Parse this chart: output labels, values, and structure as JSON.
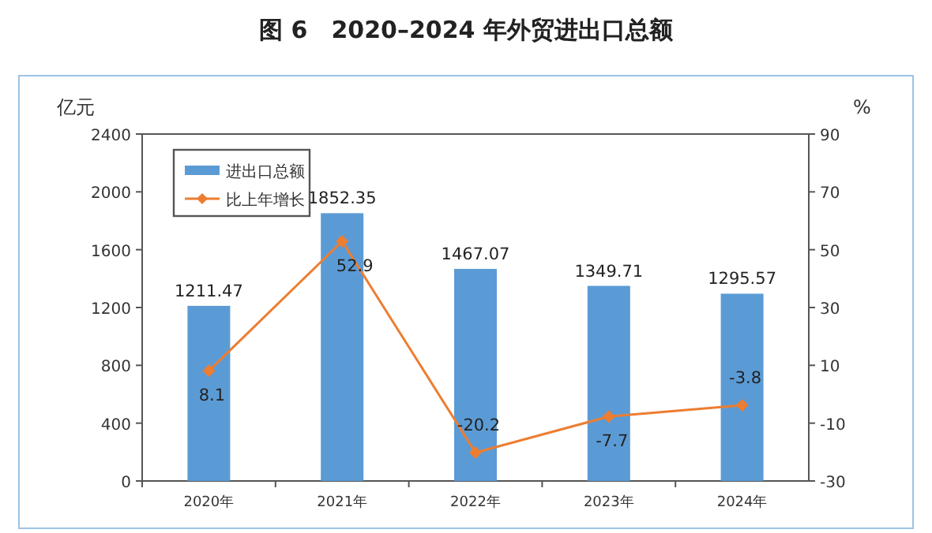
{
  "chart_data": {
    "type": "bar",
    "title": "图 6　2020–2024 年外贸进出口总额",
    "ylabel": "亿元",
    "y2label": "%",
    "categories": [
      "2020年",
      "2021年",
      "2022年",
      "2023年",
      "2024年"
    ],
    "series": [
      {
        "name": "进出口总额",
        "color": "#5b9bd5",
        "values": [
          1211.47,
          1852.35,
          1467.07,
          1349.71,
          1295.57
        ]
      },
      {
        "name": "比上年增长",
        "type": "line",
        "axis": "y2",
        "color": "#ed7d31",
        "values": [
          8.1,
          52.9,
          -20.2,
          -7.7,
          -3.8
        ]
      }
    ],
    "ylim": [
      0,
      2400
    ],
    "yticks": [
      0,
      400,
      800,
      1200,
      1600,
      2000,
      2400
    ],
    "y2lim": [
      -30,
      90
    ],
    "y2ticks": [
      -30,
      -10,
      10,
      30,
      50,
      70,
      90
    ],
    "data_labels": true,
    "legend": "top left",
    "marker": "diamond",
    "line_style": "solid"
  }
}
